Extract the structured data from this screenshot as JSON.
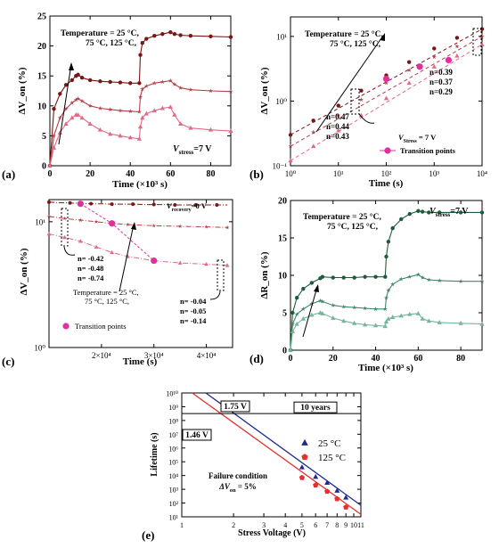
{
  "panels": {
    "a": {
      "label": "(a)",
      "chart_data": {
        "type": "line",
        "xlabel": "Time (×10³ s)",
        "ylabel": "ΔV_on (%)",
        "xlim": [
          0,
          90
        ],
        "ylim": [
          0,
          25
        ],
        "xticks": [
          "0",
          "20",
          "40",
          "60",
          "80"
        ],
        "yticks": [
          "0",
          "5",
          "10",
          "15",
          "20",
          "25"
        ],
        "annotation_temp": [
          "Temperature = 25 °C,",
          "75 °C, 125 °C,"
        ],
        "annotation_stress_prefix": "V",
        "annotation_stress_sub": "stress",
        "annotation_stress_suffix": "=7 V",
        "series": [
          {
            "color": "#7b1414",
            "marker": "circle",
            "x": [
              0,
              2,
              5,
              8,
              11,
              13,
              14,
              16,
              20,
              25,
              30,
              35,
              40,
              44.5,
              45,
              46,
              48,
              52,
              56,
              60,
              62,
              65,
              70,
              80,
              90
            ],
            "y": [
              0,
              9.5,
              12,
              13.5,
              14.3,
              15,
              15.2,
              14.7,
              14.3,
              14.1,
              14,
              13.9,
              13.8,
              13.8,
              18.5,
              20.5,
              21.2,
              21.7,
              22,
              22.3,
              22,
              21.8,
              21.7,
              21.6,
              21.5
            ]
          },
          {
            "color": "#b5404a",
            "marker": "star",
            "x": [
              0,
              2,
              5,
              8,
              11,
              13,
              14,
              16,
              20,
              25,
              30,
              35,
              40,
              44.5,
              45,
              46,
              48,
              52,
              56,
              60,
              62,
              65,
              70,
              80,
              90
            ],
            "y": [
              0,
              5,
              8,
              9.5,
              10.5,
              11,
              11.2,
              10.8,
              10,
              9.6,
              9.4,
              9.2,
              9.1,
              9,
              11.5,
              12.8,
              13.3,
              13.8,
              14,
              14.2,
              13.6,
              13,
              12.7,
              12.5,
              12.4
            ]
          },
          {
            "color": "#e06b86",
            "marker": "triangle",
            "x": [
              0,
              2,
              5,
              8,
              11,
              13,
              14,
              16,
              20,
              25,
              30,
              35,
              40,
              44.5,
              45,
              46,
              48,
              52,
              56,
              60,
              62,
              65,
              70,
              80,
              90
            ],
            "y": [
              0,
              3,
              5.5,
              7,
              8,
              8.5,
              8.5,
              8,
              7,
              6,
              5.3,
              5,
              4.7,
              4.5,
              6.5,
              8,
              8.7,
              9.2,
              9.6,
              9.8,
              8.5,
              7,
              6.3,
              6,
              5.8
            ]
          }
        ]
      }
    },
    "b": {
      "label": "(b)",
      "chart_data": {
        "type": "line",
        "xscale": "log",
        "yscale": "log",
        "xlabel": "Time (s)",
        "ylabel": "ΔV_on (%)",
        "xlim": [
          1,
          10000
        ],
        "ylim": [
          0.1,
          20
        ],
        "xticks": [
          "10⁰",
          "10¹",
          "10²",
          "10³",
          "10⁴"
        ],
        "yticks": [
          "10⁻¹",
          "10⁰",
          "10¹"
        ],
        "annotation_temp": [
          "Temperature = 25 °C,",
          "75 °C, 125 °C,"
        ],
        "annotation_n_high": [
          "n=0.39",
          "n=0.37",
          "n=0.29"
        ],
        "annotation_n_low": [
          "n=0.47",
          "n=0.44",
          "n=0.43"
        ],
        "annotation_stress_prefix": "V",
        "annotation_stress_sub": "Stress",
        "annotation_stress_suffix": " = 7 V",
        "legend_entry": "Transition points",
        "series": [
          {
            "color": "#7b1414",
            "marker": "circle",
            "x": [
              1,
              3,
              10,
              30,
              100,
              300,
              1000,
              3000,
              10000
            ],
            "y": [
              0.3,
              0.5,
              0.85,
              1.45,
              2.5,
              4,
              6.5,
              9.5,
              13
            ]
          },
          {
            "color": "#b5404a",
            "marker": "star",
            "x": [
              1,
              3,
              10,
              30,
              100,
              300,
              1000,
              3000,
              10000
            ],
            "y": [
              0.2,
              0.33,
              0.6,
              1.05,
              1.9,
              3,
              4.8,
              7,
              10
            ]
          },
          {
            "color": "#e06b86",
            "marker": "triangle",
            "x": [
              1,
              3,
              10,
              30,
              100,
              300,
              1000,
              3000,
              10000
            ],
            "y": [
              0.12,
              0.2,
              0.35,
              0.6,
              1.1,
              1.9,
              3.4,
              5,
              7.5
            ]
          }
        ],
        "transition_points": {
          "x": [
            100,
            500,
            2000
          ],
          "y": [
            2.2,
            3.4,
            4.3
          ]
        }
      }
    },
    "c": {
      "label": "(c)",
      "chart_data": {
        "type": "line",
        "yscale": "log",
        "xlabel": "Time (s)",
        "ylabel": "ΔV_on (%)",
        "xlim": [
          10000,
          45000
        ],
        "ylim": [
          1,
          15
        ],
        "xticks": [
          "2×10⁴",
          "3×10⁴",
          "4×10⁴"
        ],
        "yticks": [
          "10⁰",
          "10¹"
        ],
        "annotation_temp": [
          "Temperature = 25 °C,",
          "75 °C, 125 °C,"
        ],
        "annotation_n_left": [
          "n= -0.42",
          "n= -0.48",
          "n= -0.74"
        ],
        "annotation_n_right": [
          "n= -0.04",
          "n= -0.05",
          "n= -0.14"
        ],
        "annotation_recovery_prefix": "V",
        "annotation_recovery_sub": "recovery",
        "annotation_recovery_suffix": "=0 V",
        "legend_entry": "Transition points",
        "series": [
          {
            "color": "#7b1414",
            "marker": "circle",
            "x": [
              10000,
              12000,
              14000,
              16000,
              18000,
              20000,
              22000,
              24000,
              26000,
              28000,
              30000,
              32000,
              34000,
              36000,
              38000,
              40000,
              42000,
              44000
            ],
            "y": [
              14.3,
              14.2,
              14.1,
              14.0,
              13.9,
              13.9,
              13.8,
              13.8,
              13.8,
              13.7,
              13.7,
              13.7,
              13.6,
              13.6,
              13.6,
              13.6,
              13.6,
              13.6
            ]
          },
          {
            "color": "#b5404a",
            "marker": "star",
            "x": [
              10000,
              13000,
              16000,
              19000,
              22000,
              25000,
              30000,
              35000,
              40000,
              44000
            ],
            "y": [
              11,
              10.6,
              10.3,
              10,
              9.7,
              9.5,
              9.3,
              9.2,
              9.1,
              9
            ]
          },
          {
            "color": "#e06b86",
            "marker": "triangle",
            "x": [
              10000,
              13000,
              16000,
              19000,
              22000,
              25000,
              30000,
              35000,
              40000,
              44000
            ],
            "y": [
              8,
              7.5,
              7,
              6.3,
              5.7,
              5.3,
              4.9,
              4.7,
              4.6,
              4.5
            ]
          }
        ],
        "transition_points": {
          "x": [
            16000,
            22000,
            30000
          ],
          "y": [
            13.9,
            9.7,
            4.9
          ]
        }
      }
    },
    "d": {
      "label": "(d)",
      "chart_data": {
        "type": "line",
        "xlabel": "Time (×10³ s)",
        "ylabel": "ΔR_on (%)",
        "xlim": [
          0,
          90
        ],
        "ylim": [
          0,
          20
        ],
        "xticks": [
          "0",
          "20",
          "40",
          "60",
          "80"
        ],
        "yticks": [
          "0",
          "5",
          "10",
          "15",
          "20"
        ],
        "annotation_temp": [
          "Temperature = 25 °C,",
          "75 °C, 125 °C,"
        ],
        "annotation_stress_prefix": "V",
        "annotation_stress_sub": "stress",
        "annotation_stress_suffix": "=7 V",
        "series": [
          {
            "color": "#1f5b3a",
            "marker": "circle",
            "x": [
              0,
              1,
              3,
              6,
              10,
              14,
              15,
              20,
              25,
              30,
              35,
              40,
              44.5,
              45,
              46,
              48,
              52,
              56,
              60,
              62,
              65,
              70,
              80,
              90
            ],
            "y": [
              0,
              5,
              7,
              8.2,
              9,
              9.6,
              9.8,
              9.7,
              9.7,
              9.7,
              9.8,
              9.8,
              9.8,
              12.5,
              14.5,
              16.3,
              17.5,
              18.2,
              18.6,
              18.5,
              18.4,
              18.4,
              18.4,
              18.4
            ]
          },
          {
            "color": "#40866a",
            "marker": "star",
            "x": [
              0,
              1,
              3,
              6,
              10,
              14,
              15,
              20,
              25,
              30,
              35,
              40,
              44.5,
              45,
              46,
              48,
              52,
              56,
              60,
              62,
              65,
              70,
              80,
              90
            ],
            "y": [
              0,
              3.5,
              4.8,
              5.5,
              6.2,
              6.6,
              6.5,
              6,
              5.8,
              5.7,
              5.6,
              5.5,
              5.5,
              7,
              8,
              8.8,
              9.5,
              9.8,
              10.1,
              9.7,
              9.4,
              9.3,
              9.2,
              9.2
            ]
          },
          {
            "color": "#74b69a",
            "marker": "triangle",
            "x": [
              0,
              1,
              3,
              6,
              10,
              14,
              15,
              20,
              25,
              30,
              35,
              40,
              44.5,
              45,
              46,
              48,
              52,
              56,
              60,
              62,
              65,
              70,
              80,
              90
            ],
            "y": [
              0,
              2.5,
              3.5,
              4.2,
              4.7,
              5,
              4.9,
              4.3,
              3.9,
              3.6,
              3.4,
              3.3,
              3.2,
              3.8,
              4.2,
              4.4,
              4.6,
              4.8,
              4.9,
              4.2,
              3.9,
              3.7,
              3.6,
              3.5
            ]
          }
        ]
      }
    },
    "e": {
      "label": "(e)",
      "chart_data": {
        "type": "scatter",
        "xscale": "log",
        "yscale": "log",
        "xlabel": "Stress Voltage (V)",
        "ylabel": "Lifetime (s)",
        "xlim": [
          1,
          11
        ],
        "ylim": [
          10,
          10000000000
        ],
        "xticks": [
          "1",
          "2",
          "3",
          "4",
          "5",
          "6",
          "7",
          "8",
          "9",
          "10",
          "11"
        ],
        "yticks": [
          "10¹",
          "10²",
          "10³",
          "10⁴",
          "10⁵",
          "10⁶",
          "10⁷",
          "10⁸",
          "10⁹",
          "10¹⁰"
        ],
        "ten_years_label": "10 years",
        "ten_years_value": 315360000,
        "label_175": "1.75 V",
        "label_146": "1.46 V",
        "failure_label": "Failure condition",
        "failure_cond_prefix": "ΔV",
        "failure_cond_sub": "on",
        "failure_cond_suffix": " = 5%",
        "series": [
          {
            "name": "25 °C",
            "color": "#1f2a8a",
            "marker": "triangle",
            "x": [
              5,
              6,
              7,
              8,
              9
            ],
            "y": [
              40000,
              8000,
              3000,
              800,
              250
            ],
            "fit": {
              "x": [
                1.38,
                11
              ],
              "y": [
                10000000000,
                68
              ]
            }
          },
          {
            "name": "125 °C",
            "color": "#e53030",
            "marker": "pentagon",
            "x": [
              5,
              6,
              7,
              8,
              9
            ],
            "y": [
              7000,
              2000,
              700,
              200,
              50
            ],
            "fit": {
              "x": [
                1.15,
                11
              ],
              "y": [
                10000000000,
                15
              ]
            }
          }
        ]
      }
    }
  }
}
